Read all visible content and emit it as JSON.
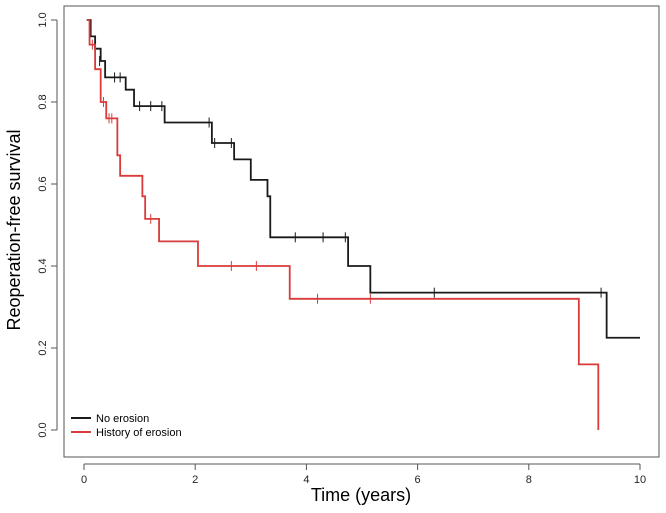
{
  "chart_data": {
    "type": "line",
    "subtype": "kaplan-meier-step",
    "title": "",
    "xlabel": "Time (years)",
    "ylabel": "Reoperation-free survival",
    "xlim": [
      0,
      10
    ],
    "ylim": [
      0,
      1
    ],
    "x_ticks": [
      0,
      2,
      4,
      6,
      8,
      10
    ],
    "y_ticks": [
      0.0,
      0.2,
      0.4,
      0.6,
      0.8,
      1.0
    ],
    "x_tick_labels": [
      "0",
      "2",
      "4",
      "6",
      "8",
      "10"
    ],
    "y_tick_labels": [
      "0.0",
      "0.2",
      "0.4",
      "0.6",
      "0.8",
      "1.0"
    ],
    "grid": false,
    "legend_position": "bottom-left",
    "series": [
      {
        "name": "No erosion",
        "color": "#1a1a1a",
        "steps": [
          [
            0.05,
            1.0
          ],
          [
            0.12,
            0.96
          ],
          [
            0.2,
            0.93
          ],
          [
            0.3,
            0.9
          ],
          [
            0.38,
            0.86
          ],
          [
            0.75,
            0.83
          ],
          [
            0.9,
            0.79
          ],
          [
            1.45,
            0.75
          ],
          [
            2.3,
            0.7
          ],
          [
            2.7,
            0.66
          ],
          [
            3.0,
            0.61
          ],
          [
            3.3,
            0.57
          ],
          [
            3.35,
            0.47
          ],
          [
            4.75,
            0.4
          ],
          [
            5.15,
            0.335
          ],
          [
            9.4,
            0.225
          ],
          [
            10.0,
            0.225
          ]
        ],
        "censored": [
          [
            0.1,
            0.96
          ],
          [
            0.28,
            0.9
          ],
          [
            0.55,
            0.86
          ],
          [
            0.65,
            0.86
          ],
          [
            1.0,
            0.79
          ],
          [
            1.2,
            0.79
          ],
          [
            1.4,
            0.79
          ],
          [
            2.25,
            0.75
          ],
          [
            2.35,
            0.7
          ],
          [
            2.65,
            0.7
          ],
          [
            3.8,
            0.47
          ],
          [
            4.3,
            0.47
          ],
          [
            4.7,
            0.47
          ],
          [
            6.3,
            0.335
          ],
          [
            9.3,
            0.335
          ]
        ]
      },
      {
        "name": "History of erosion",
        "color": "#d93a3a",
        "steps": [
          [
            0.05,
            1.0
          ],
          [
            0.1,
            0.94
          ],
          [
            0.2,
            0.88
          ],
          [
            0.3,
            0.8
          ],
          [
            0.4,
            0.76
          ],
          [
            0.6,
            0.67
          ],
          [
            0.65,
            0.62
          ],
          [
            1.05,
            0.57
          ],
          [
            1.1,
            0.515
          ],
          [
            1.35,
            0.46
          ],
          [
            2.05,
            0.4
          ],
          [
            3.7,
            0.32
          ],
          [
            8.9,
            0.16
          ],
          [
            9.25,
            0.0
          ]
        ],
        "censored": [
          [
            0.15,
            0.94
          ],
          [
            0.35,
            0.8
          ],
          [
            0.45,
            0.76
          ],
          [
            0.5,
            0.76
          ],
          [
            1.2,
            0.515
          ],
          [
            2.65,
            0.4
          ],
          [
            3.1,
            0.4
          ],
          [
            4.2,
            0.32
          ],
          [
            5.15,
            0.32
          ]
        ]
      }
    ]
  }
}
